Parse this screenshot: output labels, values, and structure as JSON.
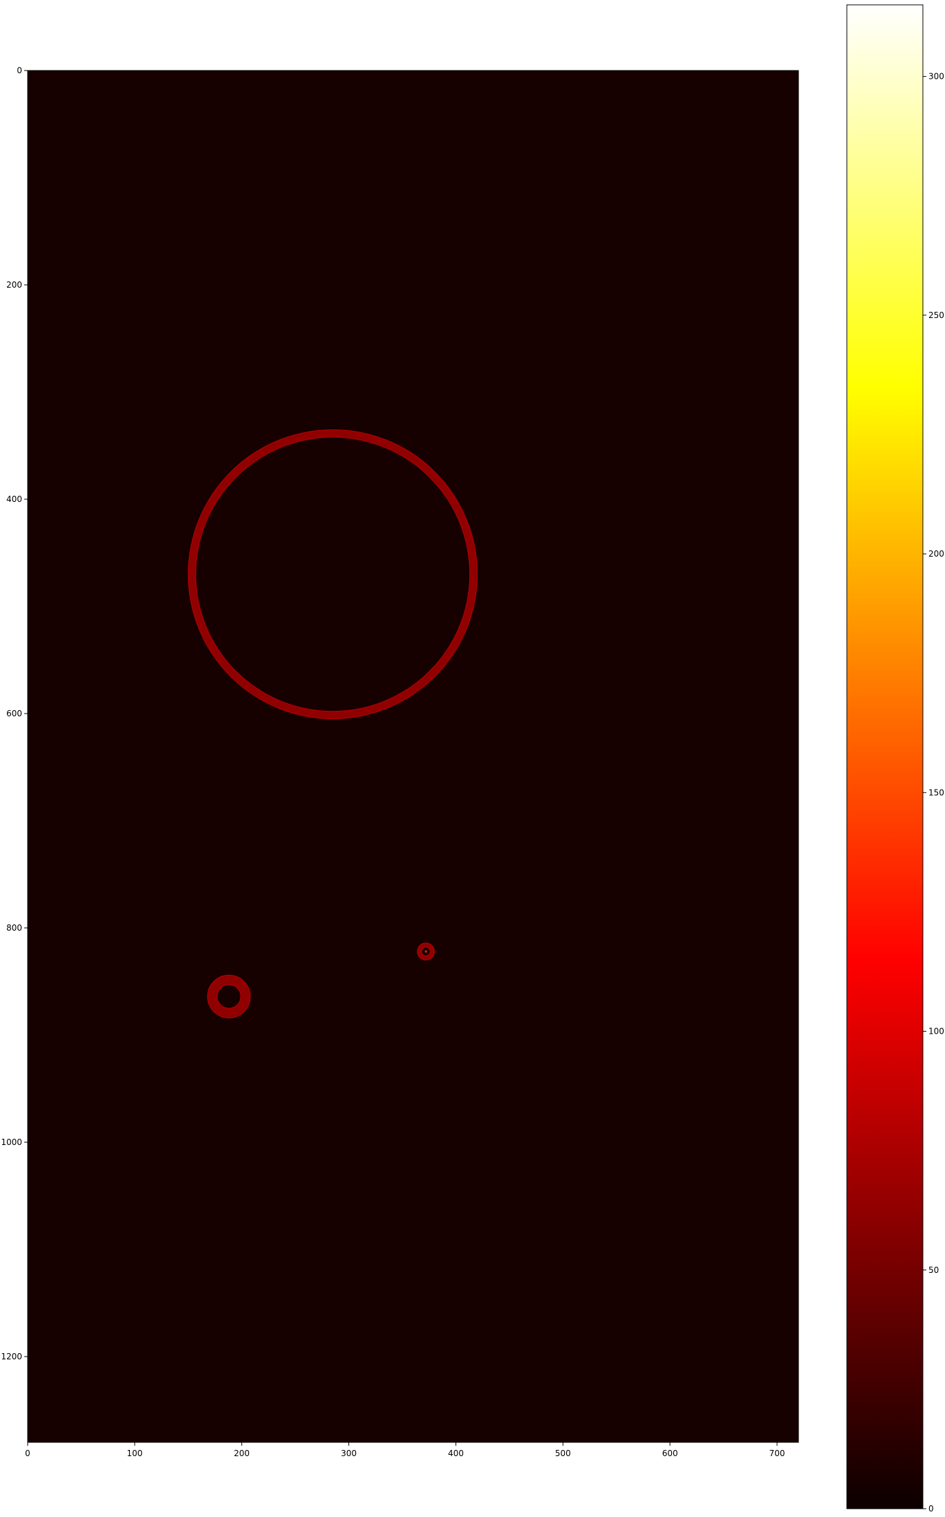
{
  "chart_data": {
    "type": "heatmap",
    "title": "",
    "xlabel": "",
    "ylabel": "",
    "colormap": "hot",
    "image_width": 720,
    "image_height": 1280,
    "background_value": 5,
    "xlim": [
      0,
      720
    ],
    "ylim": [
      1280,
      0
    ],
    "x_ticks": [
      0,
      100,
      200,
      300,
      400,
      500,
      600,
      700
    ],
    "y_ticks": [
      0,
      200,
      400,
      600,
      800,
      1000,
      1200
    ],
    "colorbar": {
      "vmin": 0,
      "vmax": 315,
      "ticks": [
        0,
        50,
        100,
        150,
        200,
        250,
        300
      ]
    },
    "rings": [
      {
        "name": "large-ring",
        "cx": 285,
        "cy": 470,
        "r_outer": 135,
        "r_inner": 128,
        "value": 60
      },
      {
        "name": "small-ring",
        "cx": 188,
        "cy": 864,
        "r_outer": 20,
        "r_inner": 11,
        "value": 60
      },
      {
        "name": "tiny-spot",
        "cx": 372,
        "cy": 822,
        "r_outer": 8,
        "r_inner": 4,
        "value": 60,
        "center_value": 130
      }
    ]
  }
}
